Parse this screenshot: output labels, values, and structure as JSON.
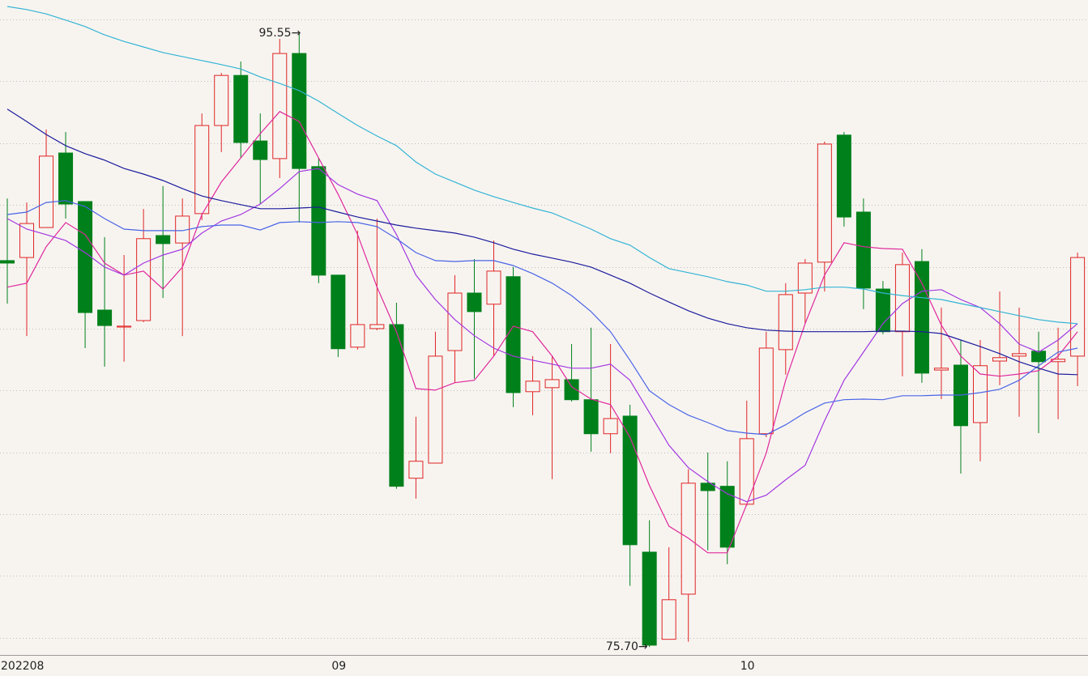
{
  "chart_data": {
    "type": "candlestick",
    "categories": [
      "202208",
      null,
      null,
      null,
      null,
      null,
      null,
      null,
      null,
      null,
      null,
      null,
      null,
      null,
      null,
      null,
      null,
      "09",
      null,
      null,
      null,
      null,
      null,
      null,
      null,
      null,
      null,
      null,
      null,
      null,
      null,
      null,
      null,
      null,
      null,
      null,
      null,
      null,
      "10",
      null,
      null,
      null,
      null,
      null,
      null,
      null,
      null,
      null,
      null,
      null,
      null,
      null,
      null,
      null,
      null,
      null
    ],
    "open": [
      88.2,
      88.3,
      89.27,
      91.68,
      90.11,
      86.6,
      86.05,
      86.26,
      89.01,
      88.77,
      89.72,
      92.57,
      94.19,
      92.07,
      91.5,
      94.9,
      91.24,
      87.73,
      85.4,
      86.0,
      86.13,
      81.16,
      81.65,
      85.29,
      87.15,
      86.79,
      87.68,
      83.96,
      84.09,
      84.35,
      83.7,
      82.6,
      83.17,
      78.77,
      75.95,
      77.41,
      81.0,
      80.9,
      80.32,
      82.6,
      85.32,
      87.15,
      88.15,
      92.26,
      89.77,
      87.28,
      85.9,
      88.17,
      84.66,
      84.82,
      82.96,
      84.95,
      85.11,
      85.27,
      84.93,
      85.11
    ],
    "high": [
      90.21,
      90.08,
      92.44,
      92.36,
      90.11,
      88.96,
      88.38,
      89.87,
      90.61,
      90.21,
      92.96,
      94.27,
      94.64,
      92.96,
      95.37,
      95.55,
      91.52,
      87.73,
      89.17,
      89.56,
      86.84,
      83.15,
      85.9,
      87.73,
      88.25,
      88.85,
      87.99,
      85.11,
      85.11,
      85.5,
      86.03,
      85.5,
      83.54,
      79.8,
      78.93,
      81.45,
      81.99,
      81.71,
      83.67,
      85.9,
      87.47,
      88.25,
      92.05,
      92.36,
      90.21,
      87.54,
      88.46,
      88.57,
      86.68,
      85.63,
      85.63,
      87.2,
      86.68,
      85.9,
      86.03,
      88.46
    ],
    "low": [
      86.81,
      85.76,
      89.27,
      89.56,
      85.37,
      84.77,
      84.93,
      86.21,
      86.99,
      85.76,
      89.51,
      91.71,
      91.52,
      90.03,
      90.87,
      89.43,
      87.47,
      85.08,
      85.32,
      85.95,
      80.82,
      80.5,
      81.65,
      84.25,
      84.38,
      85.11,
      83.46,
      83.2,
      81.13,
      83.64,
      82.02,
      81.97,
      77.68,
      75.7,
      75.95,
      75.87,
      78.83,
      78.38,
      80.27,
      82.49,
      84.51,
      86.16,
      87.2,
      89.3,
      86.63,
      85.82,
      84.46,
      84.25,
      83.72,
      81.31,
      81.71,
      84.17,
      83.15,
      82.62,
      83.07,
      84.14
    ],
    "close": [
      88.12,
      89.4,
      91.58,
      90.03,
      86.52,
      86.1,
      86.08,
      88.91,
      88.75,
      89.64,
      92.57,
      94.19,
      92.02,
      91.47,
      94.9,
      91.18,
      87.73,
      85.35,
      86.13,
      86.13,
      80.9,
      81.71,
      85.11,
      87.15,
      86.55,
      87.86,
      83.93,
      84.3,
      84.35,
      83.7,
      82.6,
      83.09,
      79.01,
      75.76,
      77.23,
      81.0,
      80.76,
      78.93,
      82.44,
      85.37,
      87.1,
      88.12,
      91.97,
      89.61,
      87.31,
      85.9,
      88.07,
      84.56,
      84.72,
      82.86,
      84.8,
      85.06,
      85.19,
      84.93,
      85.01,
      88.3
    ],
    "up_color": "#e02424",
    "down_color": "#00801a",
    "moving_averages": [
      {
        "color": "#e0289c",
        "values": [
          87.34,
          87.47,
          88.65,
          89.43,
          89.04,
          88.12,
          87.73,
          87.86,
          87.28,
          87.99,
          89.69,
          90.74,
          91.52,
          92.31,
          93.02,
          92.7,
          91.52,
          90.35,
          89.04,
          87.34,
          85.9,
          84.06,
          84.01,
          84.25,
          84.33,
          85.11,
          86.08,
          85.9,
          85.11,
          84.12,
          83.72,
          83.54,
          82.49,
          80.92,
          79.61,
          79.22,
          78.75,
          78.75,
          80.32,
          81.97,
          84.33,
          86.16,
          87.73,
          88.78,
          88.65,
          88.59,
          88.57,
          87.47,
          86.11,
          85.11,
          84.53,
          84.46,
          84.53,
          84.64,
          85.11,
          85.9
        ]
      },
      {
        "color": "#a338e0",
        "values": [
          89.56,
          89.22,
          89.04,
          88.85,
          88.46,
          87.99,
          87.73,
          88.12,
          88.38,
          88.57,
          89.09,
          89.48,
          89.69,
          90.03,
          90.53,
          91.08,
          91.18,
          90.66,
          90.35,
          90.14,
          89.04,
          87.73,
          86.94,
          86.29,
          85.77,
          85.37,
          85.11,
          84.98,
          84.85,
          84.72,
          84.72,
          84.85,
          84.33,
          83.28,
          82.23,
          81.5,
          81.05,
          80.66,
          80.4,
          80.61,
          81.11,
          81.58,
          83.02,
          84.33,
          85.24,
          86.16,
          86.81,
          87.21,
          87.26,
          86.94,
          86.68,
          86.16,
          85.5,
          85.24,
          85.63,
          86.16
        ]
      },
      {
        "color": "#4a64e6",
        "values": [
          89.69,
          89.77,
          90.08,
          90.14,
          89.95,
          89.56,
          89.22,
          89.17,
          89.17,
          89.17,
          89.3,
          89.35,
          89.35,
          89.19,
          89.43,
          89.46,
          89.43,
          89.46,
          89.43,
          89.3,
          88.91,
          88.46,
          88.2,
          88.17,
          88.2,
          88.2,
          88.04,
          87.78,
          87.47,
          87.07,
          86.55,
          85.9,
          84.98,
          83.99,
          83.54,
          83.2,
          82.96,
          82.7,
          82.62,
          82.57,
          82.89,
          83.28,
          83.59,
          83.7,
          83.72,
          83.7,
          83.83,
          83.83,
          83.85,
          83.85,
          83.93,
          84.04,
          84.33,
          84.8,
          85.24,
          85.37
        ]
      },
      {
        "color": "#1c1c9c",
        "values": [
          93.1,
          92.7,
          92.28,
          91.92,
          91.66,
          91.45,
          91.18,
          91.0,
          90.79,
          90.53,
          90.29,
          90.14,
          90.01,
          89.88,
          89.88,
          89.9,
          89.93,
          89.77,
          89.61,
          89.48,
          89.35,
          89.25,
          89.17,
          89.09,
          88.96,
          88.78,
          88.57,
          88.41,
          88.28,
          88.15,
          87.99,
          87.73,
          87.47,
          87.15,
          86.86,
          86.58,
          86.34,
          86.16,
          86.03,
          85.95,
          85.92,
          85.9,
          85.9,
          85.9,
          85.9,
          85.92,
          85.92,
          85.9,
          85.84,
          85.63,
          85.42,
          85.19,
          84.93,
          84.72,
          84.53,
          84.51
        ]
      },
      {
        "color": "#34b4d4",
        "values": [
          96.42,
          96.32,
          96.18,
          95.98,
          95.77,
          95.5,
          95.29,
          95.11,
          94.93,
          94.8,
          94.67,
          94.54,
          94.4,
          94.14,
          93.93,
          93.7,
          93.36,
          92.96,
          92.57,
          92.23,
          91.92,
          91.39,
          91.0,
          90.74,
          90.48,
          90.27,
          90.08,
          89.9,
          89.74,
          89.48,
          89.22,
          88.91,
          88.7,
          88.3,
          87.94,
          87.81,
          87.68,
          87.52,
          87.41,
          87.21,
          87.21,
          87.26,
          87.34,
          87.34,
          87.28,
          87.15,
          87.07,
          87.0,
          86.94,
          86.81,
          86.68,
          86.55,
          86.42,
          86.29,
          86.21,
          86.16
        ]
      }
    ],
    "max_label": "95.55→",
    "min_label": "75.70→",
    "ylim": [
      75.47,
      96.63
    ],
    "grid_lines": [
      76,
      78,
      80,
      82,
      84,
      86,
      88,
      90,
      92,
      94,
      96
    ],
    "grid": true
  }
}
